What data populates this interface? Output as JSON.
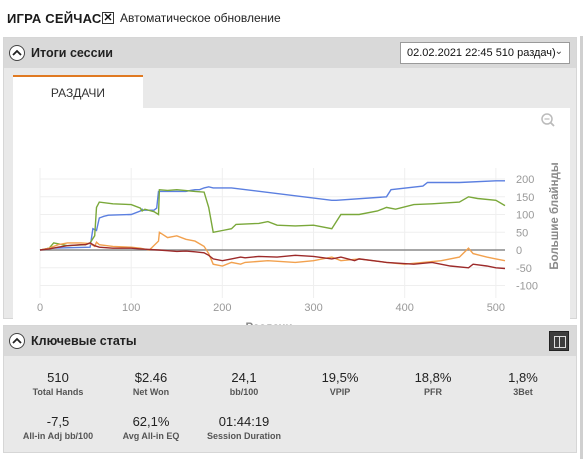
{
  "app": {
    "title": "ИГРА СЕЙЧАС",
    "auto_refresh_label": "Автоматическое обновление",
    "auto_refresh_checked": true
  },
  "session_panel": {
    "title": "Итоги сессии",
    "session_select": "02.02.2021 22:45 510 раздач)",
    "tab": "РАЗДАЧИ"
  },
  "chart_data": {
    "type": "line",
    "xlabel": "Раздачи",
    "ylabel": "Большие блайнды",
    "xlim": [
      0,
      510
    ],
    "ylim": [
      -120,
      215
    ],
    "x_ticks": [
      "0",
      "100",
      "200",
      "300",
      "400",
      "500"
    ],
    "x_tick_values": [
      0,
      100,
      200,
      300,
      400,
      500
    ],
    "y_ticks": [
      "200",
      "150",
      "100",
      "50",
      "0",
      "-50",
      "-100"
    ],
    "y_tick_values": [
      200,
      150,
      100,
      50,
      0,
      -50,
      -100
    ],
    "series": [
      {
        "color": "#5b7fe0",
        "x": [
          0,
          5,
          10,
          55,
          58,
          62,
          65,
          68,
          70,
          75,
          100,
          110,
          112,
          113,
          125,
          128,
          130,
          160,
          165,
          170,
          175,
          180,
          185,
          190,
          210,
          320,
          325,
          380,
          385,
          420,
          425,
          460,
          500,
          510
        ],
        "y": [
          0,
          2,
          5,
          8,
          60,
          55,
          90,
          93,
          95,
          98,
          100,
          110,
          115,
          112,
          112,
          118,
          165,
          165,
          168,
          170,
          170,
          175,
          178,
          175,
          175,
          140,
          140,
          150,
          170,
          180,
          190,
          190,
          195,
          195
        ]
      },
      {
        "color": "#7aa83a",
        "x": [
          0,
          10,
          15,
          30,
          50,
          55,
          60,
          62,
          65,
          80,
          100,
          110,
          112,
          115,
          125,
          130,
          131,
          140,
          150,
          170,
          180,
          185,
          190,
          200,
          210,
          215,
          240,
          250,
          260,
          280,
          300,
          320,
          330,
          350,
          370,
          380,
          390,
          410,
          430,
          460,
          470,
          480,
          500,
          510
        ],
        "y": [
          0,
          5,
          20,
          12,
          15,
          20,
          40,
          120,
          135,
          130,
          128,
          118,
          110,
          115,
          108,
          100,
          170,
          168,
          170,
          165,
          163,
          120,
          50,
          55,
          60,
          72,
          75,
          80,
          70,
          68,
          70,
          60,
          100,
          100,
          110,
          120,
          115,
          128,
          130,
          135,
          150,
          145,
          140,
          125
        ]
      },
      {
        "color": "#f2a14e",
        "x": [
          0,
          10,
          20,
          30,
          45,
          55,
          60,
          62,
          65,
          80,
          100,
          110,
          120,
          130,
          131,
          140,
          150,
          160,
          170,
          180,
          185,
          190,
          200,
          210,
          220,
          225,
          250,
          280,
          300,
          320,
          330,
          350,
          380,
          400,
          420,
          440,
          460,
          470,
          475,
          490,
          500,
          510
        ],
        "y": [
          0,
          5,
          15,
          20,
          20,
          18,
          10,
          22,
          15,
          10,
          8,
          5,
          0,
          25,
          50,
          35,
          40,
          30,
          25,
          10,
          -10,
          -40,
          -45,
          -35,
          -40,
          -35,
          -30,
          -35,
          -30,
          -20,
          -30,
          -25,
          -35,
          -40,
          -35,
          -30,
          -20,
          5,
          -10,
          -20,
          -25,
          -30
        ]
      },
      {
        "color": "#9c2a2a",
        "x": [
          0,
          10,
          20,
          30,
          45,
          50,
          55,
          60,
          65,
          80,
          100,
          110,
          130,
          140,
          150,
          160,
          170,
          180,
          185,
          190,
          200,
          210,
          220,
          225,
          240,
          260,
          280,
          300,
          320,
          330,
          345,
          350,
          380,
          410,
          430,
          450,
          470,
          475,
          490,
          500,
          510
        ],
        "y": [
          0,
          3,
          8,
          12,
          15,
          15,
          20,
          12,
          8,
          5,
          5,
          3,
          0,
          -2,
          -4,
          -3,
          -5,
          -8,
          -15,
          -25,
          -30,
          -25,
          -20,
          -22,
          -18,
          -20,
          -15,
          -18,
          -25,
          -20,
          -30,
          -25,
          -35,
          -40,
          -35,
          -45,
          -50,
          -40,
          -45,
          -50,
          -52
        ]
      },
      {
        "color": "#8a8a8a",
        "x": [
          0,
          510
        ],
        "y": [
          0,
          0
        ]
      }
    ]
  },
  "stats_panel": {
    "title": "Ключевые статы",
    "stats": [
      {
        "value": "510",
        "label": "Total Hands"
      },
      {
        "value": "$2.46",
        "label": "Net Won"
      },
      {
        "value": "24,1",
        "label": "bb/100"
      },
      {
        "value": "19,5%",
        "label": "VPIP"
      },
      {
        "value": "18,8%",
        "label": "PFR"
      },
      {
        "value": "1,8%",
        "label": "3Bet"
      },
      {
        "value": "-7,5",
        "label": "All-in Adj bb/100"
      },
      {
        "value": "62,1%",
        "label": "Avg All-in EQ"
      },
      {
        "value": "01:44:19",
        "label": "Session Duration"
      }
    ]
  }
}
